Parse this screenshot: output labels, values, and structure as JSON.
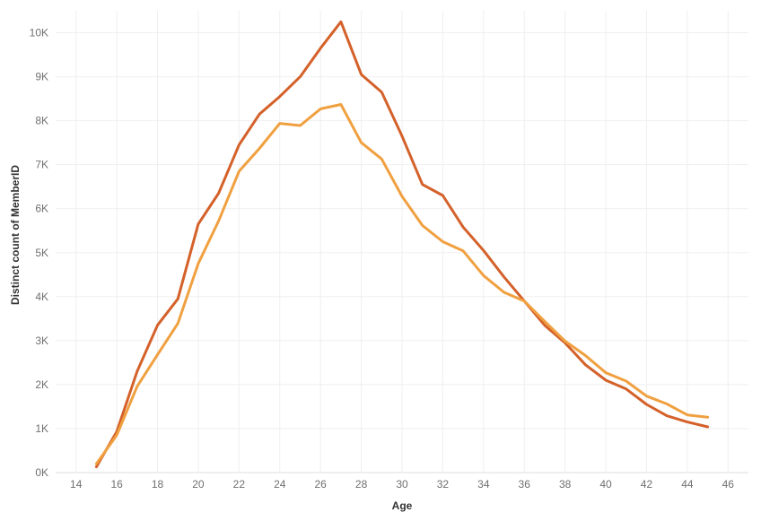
{
  "chart_data": {
    "type": "line",
    "xlabel": "Age",
    "ylabel": "Distinct count of MemberID",
    "xlim": [
      13,
      47
    ],
    "ylim": [
      0,
      10500
    ],
    "x_ticks": [
      14,
      16,
      18,
      20,
      22,
      24,
      26,
      28,
      30,
      32,
      34,
      36,
      38,
      40,
      42,
      44,
      46
    ],
    "x_tick_labels": [
      "14",
      "16",
      "18",
      "20",
      "22",
      "24",
      "26",
      "28",
      "30",
      "32",
      "34",
      "36",
      "38",
      "40",
      "42",
      "44",
      "46"
    ],
    "y_ticks": [
      0,
      1000,
      2000,
      3000,
      4000,
      5000,
      6000,
      7000,
      8000,
      9000,
      10000
    ],
    "y_tick_labels": [
      "0K",
      "1K",
      "2K",
      "3K",
      "4K",
      "5K",
      "6K",
      "7K",
      "8K",
      "9K",
      "10K"
    ],
    "grid": true,
    "x": [
      15,
      16,
      17,
      18,
      19,
      20,
      21,
      22,
      23,
      24,
      25,
      26,
      27,
      28,
      29,
      30,
      31,
      32,
      33,
      34,
      35,
      36,
      37,
      38,
      39,
      40,
      41,
      42,
      43,
      44,
      45
    ],
    "series": [
      {
        "color": "#d4612a",
        "values": [
          130,
          930,
          2300,
          3350,
          3950,
          5650,
          6350,
          7450,
          8150,
          8550,
          9000,
          9650,
          10250,
          9050,
          8650,
          7650,
          6550,
          6300,
          5580,
          5050,
          4450,
          3900,
          3350,
          2950,
          2450,
          2100,
          1900,
          1550,
          1290,
          1150,
          1040
        ]
      },
      {
        "color": "#f0a040",
        "values": [
          200,
          850,
          1960,
          2680,
          3390,
          4750,
          5720,
          6850,
          7370,
          7940,
          7890,
          8270,
          8370,
          7500,
          7130,
          6280,
          5620,
          5250,
          5040,
          4480,
          4100,
          3900,
          3440,
          2990,
          2660,
          2270,
          2080,
          1740,
          1560,
          1310,
          1260
        ]
      }
    ]
  }
}
